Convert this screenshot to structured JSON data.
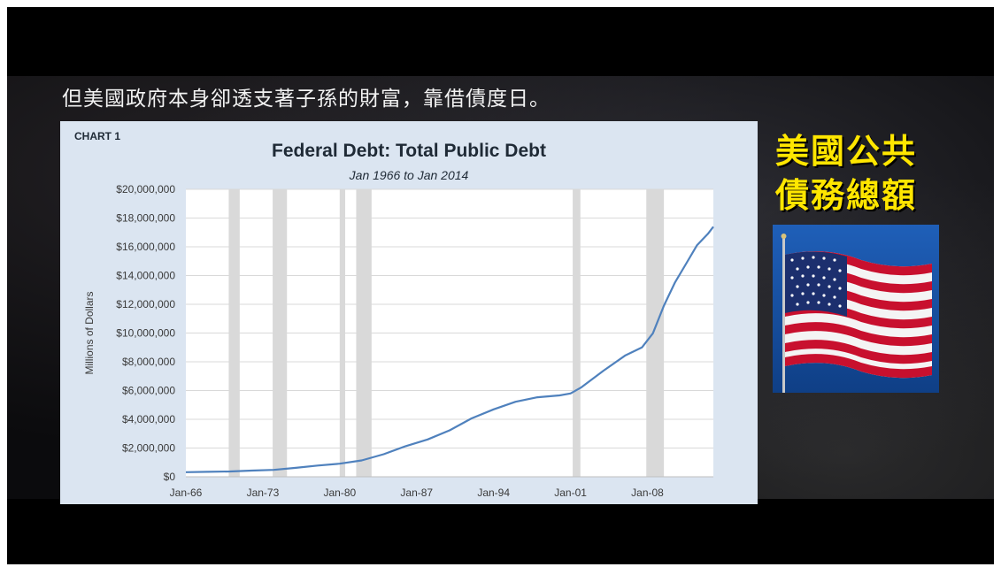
{
  "slide": {
    "headline": "但美國政府本身卻透支著子孫的財富，靠借債度日。",
    "side_title_line1": "美國公共",
    "side_title_line2": "債務總額"
  },
  "chart_label": "CHART 1",
  "chart_data": {
    "type": "line",
    "title": "Federal Debt: Total Public Debt",
    "subtitle": "Jan 1966 to Jan 2014",
    "xlabel": "",
    "ylabel": "Millions of Dollars",
    "xlim": [
      1966,
      2014
    ],
    "ylim": [
      0,
      20000000
    ],
    "x_tick_values": [
      1966,
      1973,
      1980,
      1987,
      1994,
      2001,
      2008
    ],
    "x_tick_labels": [
      "Jan-66",
      "Jan-73",
      "Jan-80",
      "Jan-87",
      "Jan-94",
      "Jan-01",
      "Jan-08"
    ],
    "y_ticks": [
      0,
      2000000,
      4000000,
      6000000,
      8000000,
      10000000,
      12000000,
      14000000,
      16000000,
      18000000,
      20000000
    ],
    "y_tick_labels": [
      "$0",
      "$2,000,000",
      "$4,000,000",
      "$6,000,000",
      "$8,000,000",
      "$10,000,000",
      "$12,000,000",
      "$14,000,000",
      "$16,000,000",
      "$18,000,000",
      "$20,000,000"
    ],
    "grid": true,
    "recession_bands": [
      [
        1969.9,
        1970.9
      ],
      [
        1973.9,
        1975.2
      ],
      [
        1980.0,
        1980.5
      ],
      [
        1981.5,
        1982.9
      ],
      [
        2001.2,
        2001.9
      ],
      [
        2007.9,
        2009.5
      ]
    ],
    "series": [
      {
        "name": "",
        "color": "#4f81bd",
        "x": [
          1966,
          1968,
          1970,
          1972,
          1974,
          1976,
          1978,
          1980,
          1982,
          1984,
          1986,
          1988,
          1990,
          1992,
          1994,
          1996,
          1998,
          2000,
          2001,
          2002,
          2004,
          2006,
          2007.5,
          2008.5,
          2009.5,
          2010.5,
          2011.5,
          2012.5,
          2013.5,
          2014
        ],
        "y": [
          320000,
          345000,
          370000,
          430000,
          480000,
          620000,
          780000,
          910000,
          1140000,
          1570000,
          2130000,
          2600000,
          3230000,
          4060000,
          4690000,
          5220000,
          5530000,
          5660000,
          5800000,
          6230000,
          7380000,
          8450000,
          9000000,
          9980000,
          11900000,
          13500000,
          14800000,
          16100000,
          16900000,
          17400000
        ]
      }
    ]
  }
}
